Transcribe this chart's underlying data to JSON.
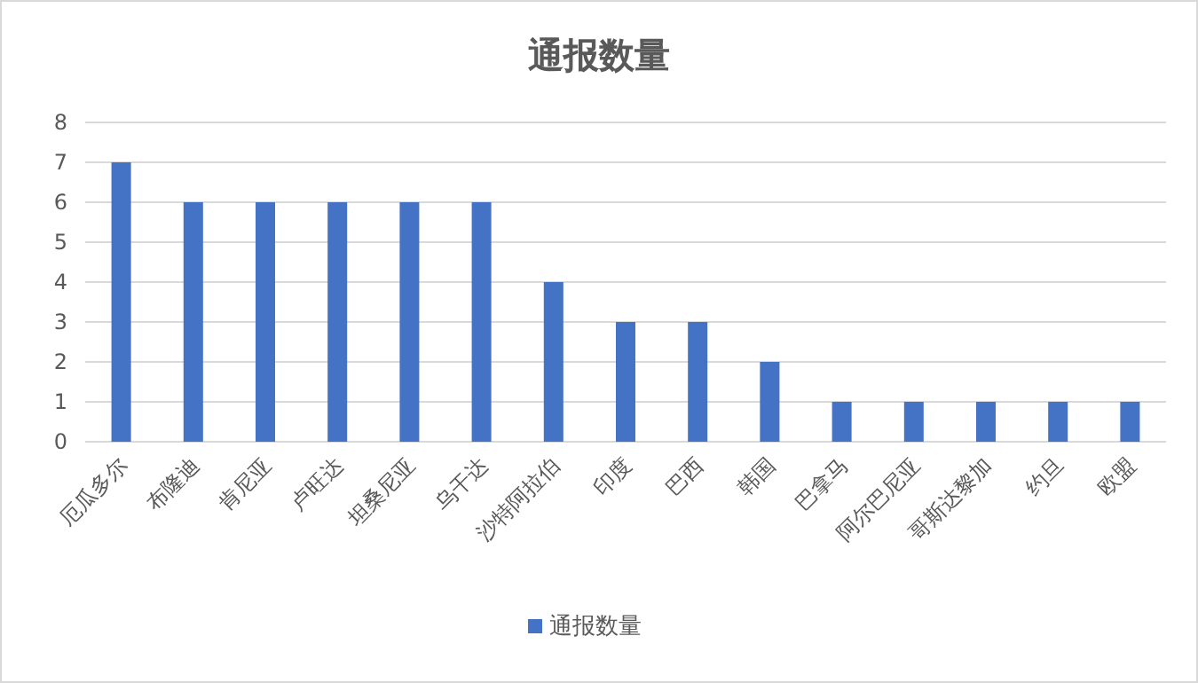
{
  "chart_data": {
    "type": "bar",
    "title": "通报数量",
    "categories": [
      "厄瓜多尔",
      "布隆迪",
      "肯尼亚",
      "卢旺达",
      "坦桑尼亚",
      "乌干达",
      "沙特阿拉伯",
      "印度",
      "巴西",
      "韩国",
      "巴拿马",
      "阿尔巴尼亚",
      "哥斯达黎加",
      "约旦",
      "欧盟"
    ],
    "series": [
      {
        "name": "通报数量",
        "color": "#4472c4",
        "values": [
          7,
          6,
          6,
          6,
          6,
          6,
          4,
          3,
          3,
          2,
          1,
          1,
          1,
          1,
          1
        ]
      }
    ],
    "ylim": [
      0,
      8
    ],
    "yticks": [
      0,
      1,
      2,
      3,
      4,
      5,
      6,
      7,
      8
    ],
    "grid": "y",
    "legend": "bottom"
  }
}
